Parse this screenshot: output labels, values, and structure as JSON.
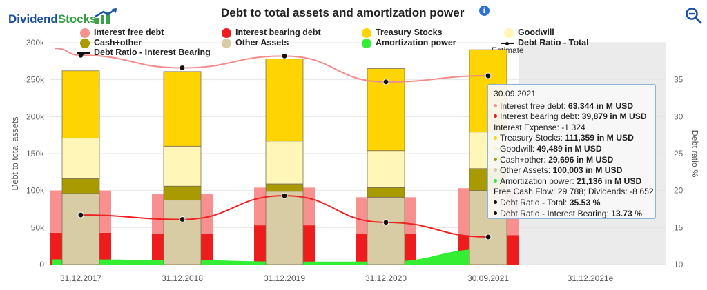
{
  "header": {
    "logo_part1": "Dividend",
    "logo_part2": "Stocks",
    "title": "Debt to total assets and amortization power",
    "info_icon_glyph": "i",
    "zoom_icon": "zoom-out-icon"
  },
  "colors": {
    "interest_free": "#f99090",
    "interest_bearing": "#ee1c1c",
    "treasury": "#ffd400",
    "goodwill": "#fff6b8",
    "cash_other": "#a89a00",
    "other_assets": "#d8cca4",
    "amortization": "#33ee33",
    "debt_total_line": "#f48a8a",
    "debt_ib_line": "#ee2222",
    "estimate_band": "#ebebeb"
  },
  "legend": [
    {
      "key": "interest_free",
      "label": "Interest free debt",
      "marker": "dot"
    },
    {
      "key": "interest_bearing",
      "label": "Interest bearing debt",
      "marker": "dot"
    },
    {
      "key": "treasury",
      "label": "Treasury Stocks",
      "marker": "dot"
    },
    {
      "key": "goodwill",
      "label": "Goodwill",
      "marker": "dot"
    },
    {
      "key": "cash_other",
      "label": "Cash+other",
      "marker": "dot"
    },
    {
      "key": "other_assets",
      "label": "Other Assets",
      "marker": "dot"
    },
    {
      "key": "amortization",
      "label": "Amortization power",
      "marker": "dot"
    },
    {
      "key": "debt_total_line",
      "label": "Debt Ratio - Total",
      "marker": "line"
    },
    {
      "key": "debt_ib_line",
      "label": "Debt Ratio - Interest Bearing",
      "marker": "line"
    }
  ],
  "chart_data": {
    "type": "bar",
    "title": "Debt to total assets and amortization power",
    "xlabel": "",
    "ylabel": "Debt to total assets",
    "y2label": "Debt ratio %",
    "ylim": [
      0,
      300000
    ],
    "y_ticks": [
      "0",
      "50k",
      "100k",
      "150k",
      "200k",
      "250k",
      "300k"
    ],
    "y_tick_values": [
      0,
      50000,
      100000,
      150000,
      200000,
      250000,
      300000
    ],
    "y2lim": [
      10,
      40
    ],
    "y2_ticks": [
      "10",
      "15",
      "20",
      "25",
      "30",
      "35"
    ],
    "y2_tick_values": [
      10,
      15,
      20,
      25,
      30,
      35
    ],
    "categories": [
      "31.12.2017",
      "31.12.2018",
      "31.12.2019",
      "31.12.2020",
      "30.09.2021",
      "31.12.2021e"
    ],
    "estimate_label": "Estimate",
    "grid": true,
    "debt_series": [
      {
        "name": "Interest free debt",
        "values": [
          57000,
          54000,
          51000,
          50000,
          63344,
          null
        ]
      },
      {
        "name": "Interest bearing debt",
        "values": [
          43000,
          41000,
          53000,
          41000,
          39879,
          null
        ]
      }
    ],
    "asset_series": [
      {
        "name": "Other Assets",
        "values": [
          96000,
          87000,
          99000,
          91000,
          100003,
          null
        ]
      },
      {
        "name": "Cash+other",
        "values": [
          20000,
          19000,
          10000,
          13000,
          29696,
          null
        ]
      },
      {
        "name": "Goodwill",
        "values": [
          55000,
          54000,
          58000,
          50000,
          49489,
          null
        ]
      },
      {
        "name": "Treasury Stocks",
        "values": [
          91000,
          101000,
          111000,
          111000,
          111359,
          null
        ]
      }
    ],
    "amortization": {
      "name": "Amortization power",
      "values": [
        7000,
        6000,
        4000,
        4000,
        21136,
        null
      ]
    },
    "debt_ratio_total": {
      "name": "Debt Ratio - Total",
      "values": [
        38.3,
        36.6,
        38.2,
        34.7,
        35.53,
        null
      ]
    },
    "debt_ratio_ib": {
      "name": "Debt Ratio - Interest Bearing",
      "values": [
        16.7,
        16.1,
        19.3,
        15.7,
        13.73,
        null
      ]
    }
  },
  "tooltip": {
    "date": "30.09.2021",
    "rows": [
      {
        "key": "interest_free",
        "label": "Interest free debt: ",
        "value": "63,344 in M USD",
        "dot": true
      },
      {
        "key": "interest_bearing",
        "label": "Interest bearing debt: ",
        "value": "39,879 in M USD",
        "dot": true
      },
      {
        "key": null,
        "label": "Interest Expense: -1 324",
        "value": "",
        "dot": false
      },
      {
        "key": "treasury",
        "label": "Treasury Stocks: ",
        "value": "111,359 in M USD",
        "dot": true
      },
      {
        "key": "goodwill",
        "label": "Goodwill: ",
        "value": "49,489 in M USD",
        "dot": true
      },
      {
        "key": "cash_other",
        "label": "Cash+other: ",
        "value": "29,696 in M USD",
        "dot": true
      },
      {
        "key": "other_assets",
        "label": "Other Assets: ",
        "value": "100,003 in M USD",
        "dot": true
      },
      {
        "key": "amortization",
        "label": "Amortization power: ",
        "value": "21,136 in M USD",
        "dot": true
      },
      {
        "key": null,
        "label": "Free Cash Flow: 29 788; Dividends: -8 652",
        "value": "",
        "dot": false
      },
      {
        "key": "black",
        "label": "Debt Ratio - Total: ",
        "value": "35.53 %",
        "dot": true
      },
      {
        "key": "black",
        "label": "Debt Ratio - Interest Bearing: ",
        "value": "13.73 %",
        "dot": true
      }
    ]
  }
}
